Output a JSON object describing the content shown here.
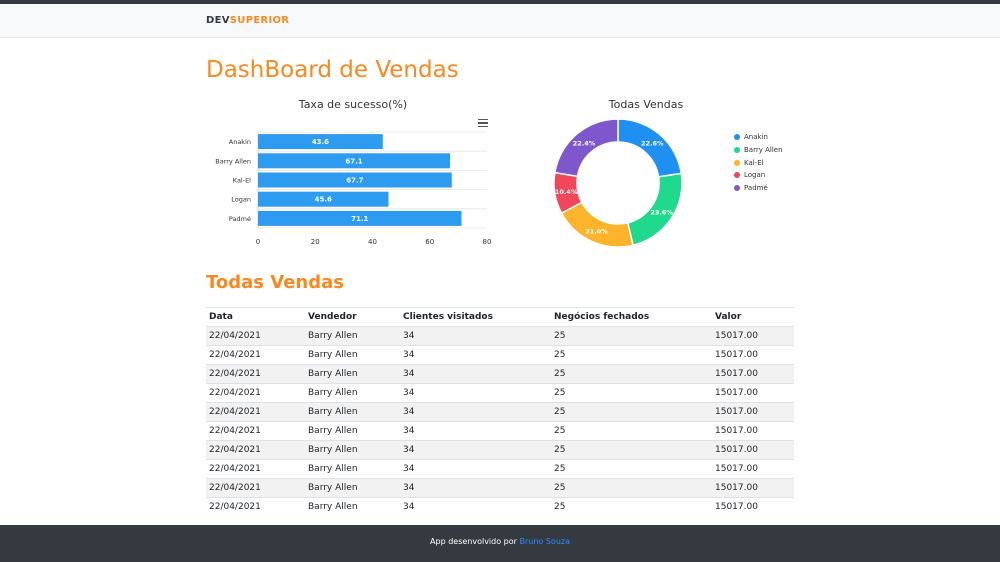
{
  "navbar": {
    "logo_dev": "DEV",
    "logo_superior": "SUPERIOR"
  },
  "page_title": "DashBoard de Vendas",
  "section_title": "Todas Vendas",
  "colors": {
    "accent": "#f7891f",
    "bar": "#2d9bf0",
    "footer": "#343a40",
    "link": "#2d8cff"
  },
  "chart_data": [
    {
      "type": "bar",
      "orientation": "horizontal",
      "title": "Taxa de sucesso(%)",
      "categories": [
        "Anakin",
        "Barry Allen",
        "Kal-El",
        "Logan",
        "Padmé"
      ],
      "values": [
        43.6,
        67.1,
        67.7,
        45.6,
        71.1
      ],
      "value_labels": [
        "43.6",
        "67.1",
        "67.7",
        "45.6",
        "71.1"
      ],
      "xlim": [
        0,
        80
      ],
      "x_ticks": [
        "0",
        "20",
        "40",
        "60",
        "80"
      ],
      "grid": true,
      "color": "#2d9bf0"
    },
    {
      "type": "pie",
      "variant": "donut",
      "title": "Todas Vendas",
      "categories": [
        "Anakin",
        "Barry Allen",
        "Kal-El",
        "Logan",
        "Padmé"
      ],
      "values": [
        22.6,
        23.6,
        21.0,
        10.4,
        22.4
      ],
      "value_labels": [
        "22.6%",
        "23.6%",
        "21.0%",
        "10.4%",
        "22.4%"
      ],
      "colors": [
        "#1e90f2",
        "#1fd98d",
        "#fdb42a",
        "#f1475b",
        "#7e57cc"
      ],
      "legend": "right"
    }
  ],
  "table": {
    "headers": [
      "Data",
      "Vendedor",
      "Clientes visitados",
      "Negócios fechados",
      "Valor"
    ],
    "rows": [
      [
        "22/04/2021",
        "Barry Allen",
        "34",
        "25",
        "15017.00"
      ],
      [
        "22/04/2021",
        "Barry Allen",
        "34",
        "25",
        "15017.00"
      ],
      [
        "22/04/2021",
        "Barry Allen",
        "34",
        "25",
        "15017.00"
      ],
      [
        "22/04/2021",
        "Barry Allen",
        "34",
        "25",
        "15017.00"
      ],
      [
        "22/04/2021",
        "Barry Allen",
        "34",
        "25",
        "15017.00"
      ],
      [
        "22/04/2021",
        "Barry Allen",
        "34",
        "25",
        "15017.00"
      ],
      [
        "22/04/2021",
        "Barry Allen",
        "34",
        "25",
        "15017.00"
      ],
      [
        "22/04/2021",
        "Barry Allen",
        "34",
        "25",
        "15017.00"
      ],
      [
        "22/04/2021",
        "Barry Allen",
        "34",
        "25",
        "15017.00"
      ],
      [
        "22/04/2021",
        "Barry Allen",
        "34",
        "25",
        "15017.00"
      ]
    ]
  },
  "footer": {
    "text": "App desenvolvido por ",
    "author": "Bruno Souza"
  }
}
